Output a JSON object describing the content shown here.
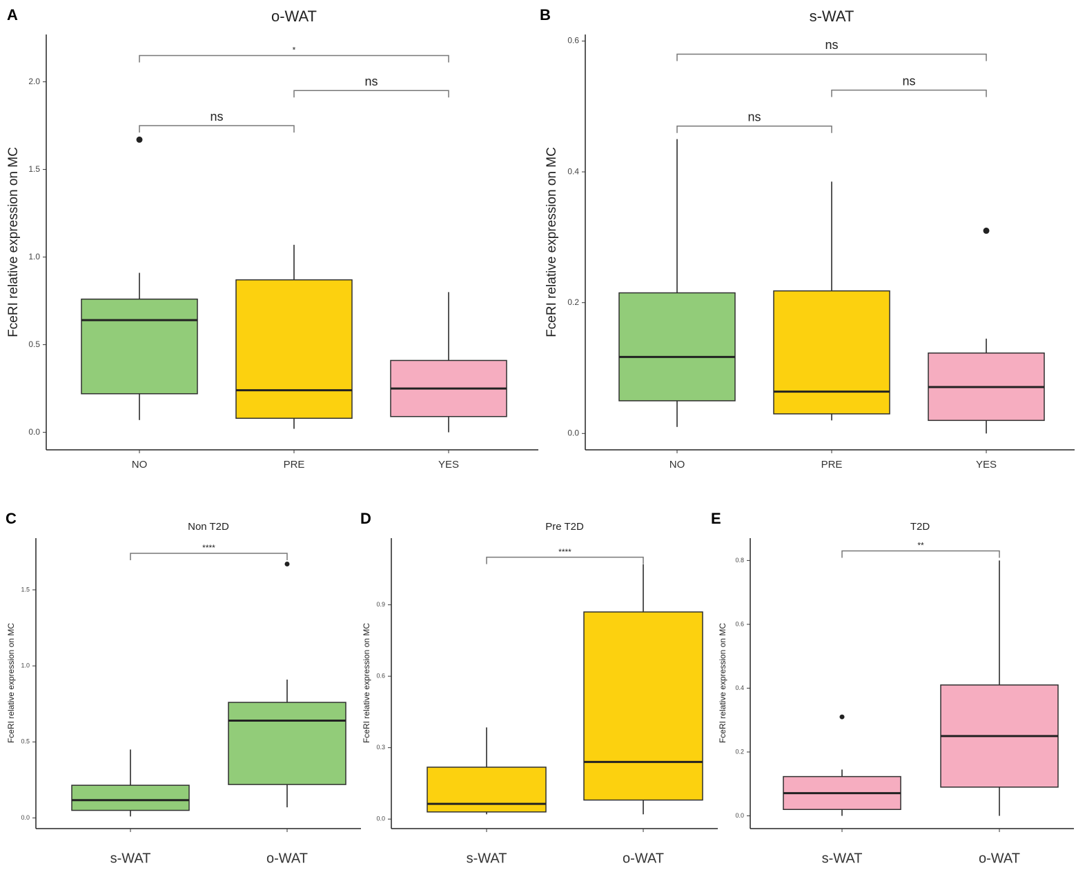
{
  "colors": {
    "NO": "#92cc79",
    "PRE": "#fcd10f",
    "YES": "#f6adc0",
    "stroke": "#2f2f2f",
    "median": "#222222"
  },
  "chart_data": [
    {
      "id": "A",
      "panel_label": "A",
      "type": "boxplot",
      "title": "o-WAT",
      "xlabel": "",
      "ylabel": "FceRI relative expression on MC",
      "ylim": [
        -0.1,
        2.27
      ],
      "yticks": [
        0.0,
        0.5,
        1.0,
        1.5,
        2.0
      ],
      "ytick_labels": [
        "0.0",
        "0.5",
        "1.0",
        "1.5",
        "2.0"
      ],
      "categories": [
        "NO",
        "PRE",
        "YES"
      ],
      "boxes": [
        {
          "category": "NO",
          "color_key": "NO",
          "whisker_low": 0.07,
          "q1": 0.22,
          "median": 0.64,
          "q3": 0.76,
          "whisker_high": 0.91,
          "outliers": [
            1.67
          ]
        },
        {
          "category": "PRE",
          "color_key": "PRE",
          "whisker_low": 0.02,
          "q1": 0.08,
          "median": 0.24,
          "q3": 0.87,
          "whisker_high": 1.07,
          "outliers": []
        },
        {
          "category": "YES",
          "color_key": "YES",
          "whisker_low": 0.0,
          "q1": 0.09,
          "median": 0.25,
          "q3": 0.41,
          "whisker_high": 0.8,
          "outliers": []
        }
      ],
      "brackets": [
        {
          "from": 0,
          "to": 2,
          "y": 2.15,
          "label": "*"
        },
        {
          "from": 1,
          "to": 2,
          "y": 1.95,
          "label": "ns"
        },
        {
          "from": 0,
          "to": 1,
          "y": 1.75,
          "label": "ns"
        }
      ]
    },
    {
      "id": "B",
      "panel_label": "B",
      "type": "boxplot",
      "title": "s-WAT",
      "xlabel": "",
      "ylabel": "FceRI relative expression on MC",
      "ylim": [
        -0.025,
        0.61
      ],
      "yticks": [
        0.0,
        0.2,
        0.4,
        0.6
      ],
      "ytick_labels": [
        "0.0",
        "0.2",
        "0.4",
        "0.6"
      ],
      "categories": [
        "NO",
        "PRE",
        "YES"
      ],
      "boxes": [
        {
          "category": "NO",
          "color_key": "NO",
          "whisker_low": 0.01,
          "q1": 0.05,
          "median": 0.117,
          "q3": 0.215,
          "whisker_high": 0.45,
          "outliers": []
        },
        {
          "category": "PRE",
          "color_key": "PRE",
          "whisker_low": 0.02,
          "q1": 0.03,
          "median": 0.064,
          "q3": 0.218,
          "whisker_high": 0.385,
          "outliers": []
        },
        {
          "category": "YES",
          "color_key": "YES",
          "whisker_low": 0.0,
          "q1": 0.02,
          "median": 0.071,
          "q3": 0.123,
          "whisker_high": 0.145,
          "outliers": [
            0.31
          ]
        }
      ],
      "brackets": [
        {
          "from": 0,
          "to": 2,
          "y": 0.58,
          "label": "ns"
        },
        {
          "from": 1,
          "to": 2,
          "y": 0.525,
          "label": "ns"
        },
        {
          "from": 0,
          "to": 1,
          "y": 0.47,
          "label": "ns"
        }
      ]
    },
    {
      "id": "C",
      "panel_label": "C",
      "type": "boxplot",
      "title": "Non T2D",
      "xlabel": "",
      "ylabel": "FceRI relative expression on MC",
      "ylim": [
        -0.07,
        1.84
      ],
      "yticks": [
        0.0,
        0.5,
        1.0,
        1.5
      ],
      "ytick_labels": [
        "0.0",
        "0.5",
        "1.0",
        "1.5"
      ],
      "categories": [
        "s-WAT",
        "o-WAT"
      ],
      "boxes": [
        {
          "category": "s-WAT",
          "color_key": "NO",
          "whisker_low": 0.01,
          "q1": 0.05,
          "median": 0.117,
          "q3": 0.215,
          "whisker_high": 0.45,
          "outliers": []
        },
        {
          "category": "o-WAT",
          "color_key": "NO",
          "whisker_low": 0.07,
          "q1": 0.22,
          "median": 0.64,
          "q3": 0.76,
          "whisker_high": 0.91,
          "outliers": [
            1.67
          ]
        }
      ],
      "brackets": [
        {
          "from": 0,
          "to": 1,
          "y": 1.74,
          "label": "****"
        }
      ]
    },
    {
      "id": "D",
      "panel_label": "D",
      "type": "boxplot",
      "title": "Pre T2D",
      "xlabel": "",
      "ylabel": "FceRI relative expression on MC",
      "ylim": [
        -0.04,
        1.18
      ],
      "yticks": [
        0.0,
        0.3,
        0.6,
        0.9
      ],
      "ytick_labels": [
        "0.0",
        "0.3",
        "0.6",
        "0.9"
      ],
      "categories": [
        "s-WAT",
        "o-WAT"
      ],
      "boxes": [
        {
          "category": "s-WAT",
          "color_key": "PRE",
          "whisker_low": 0.02,
          "q1": 0.03,
          "median": 0.064,
          "q3": 0.218,
          "whisker_high": 0.385,
          "outliers": []
        },
        {
          "category": "o-WAT",
          "color_key": "PRE",
          "whisker_low": 0.02,
          "q1": 0.08,
          "median": 0.24,
          "q3": 0.87,
          "whisker_high": 1.07,
          "outliers": []
        }
      ],
      "brackets": [
        {
          "from": 0,
          "to": 1,
          "y": 1.1,
          "label": "****"
        }
      ]
    },
    {
      "id": "E",
      "panel_label": "E",
      "type": "boxplot",
      "title": "T2D",
      "xlabel": "",
      "ylabel": "FceRI relative expression on MC",
      "ylim": [
        -0.04,
        0.87
      ],
      "yticks": [
        0.0,
        0.2,
        0.4,
        0.6,
        0.8
      ],
      "ytick_labels": [
        "0.0",
        "0.2",
        "0.4",
        "0.6",
        "0.8"
      ],
      "categories": [
        "s-WAT",
        "o-WAT"
      ],
      "boxes": [
        {
          "category": "s-WAT",
          "color_key": "YES",
          "whisker_low": 0.0,
          "q1": 0.02,
          "median": 0.071,
          "q3": 0.123,
          "whisker_high": 0.145,
          "outliers": [
            0.31
          ]
        },
        {
          "category": "o-WAT",
          "color_key": "YES",
          "whisker_low": 0.0,
          "q1": 0.09,
          "median": 0.25,
          "q3": 0.41,
          "whisker_high": 0.8,
          "outliers": []
        }
      ],
      "brackets": [
        {
          "from": 0,
          "to": 1,
          "y": 0.83,
          "label": "**"
        }
      ]
    }
  ]
}
